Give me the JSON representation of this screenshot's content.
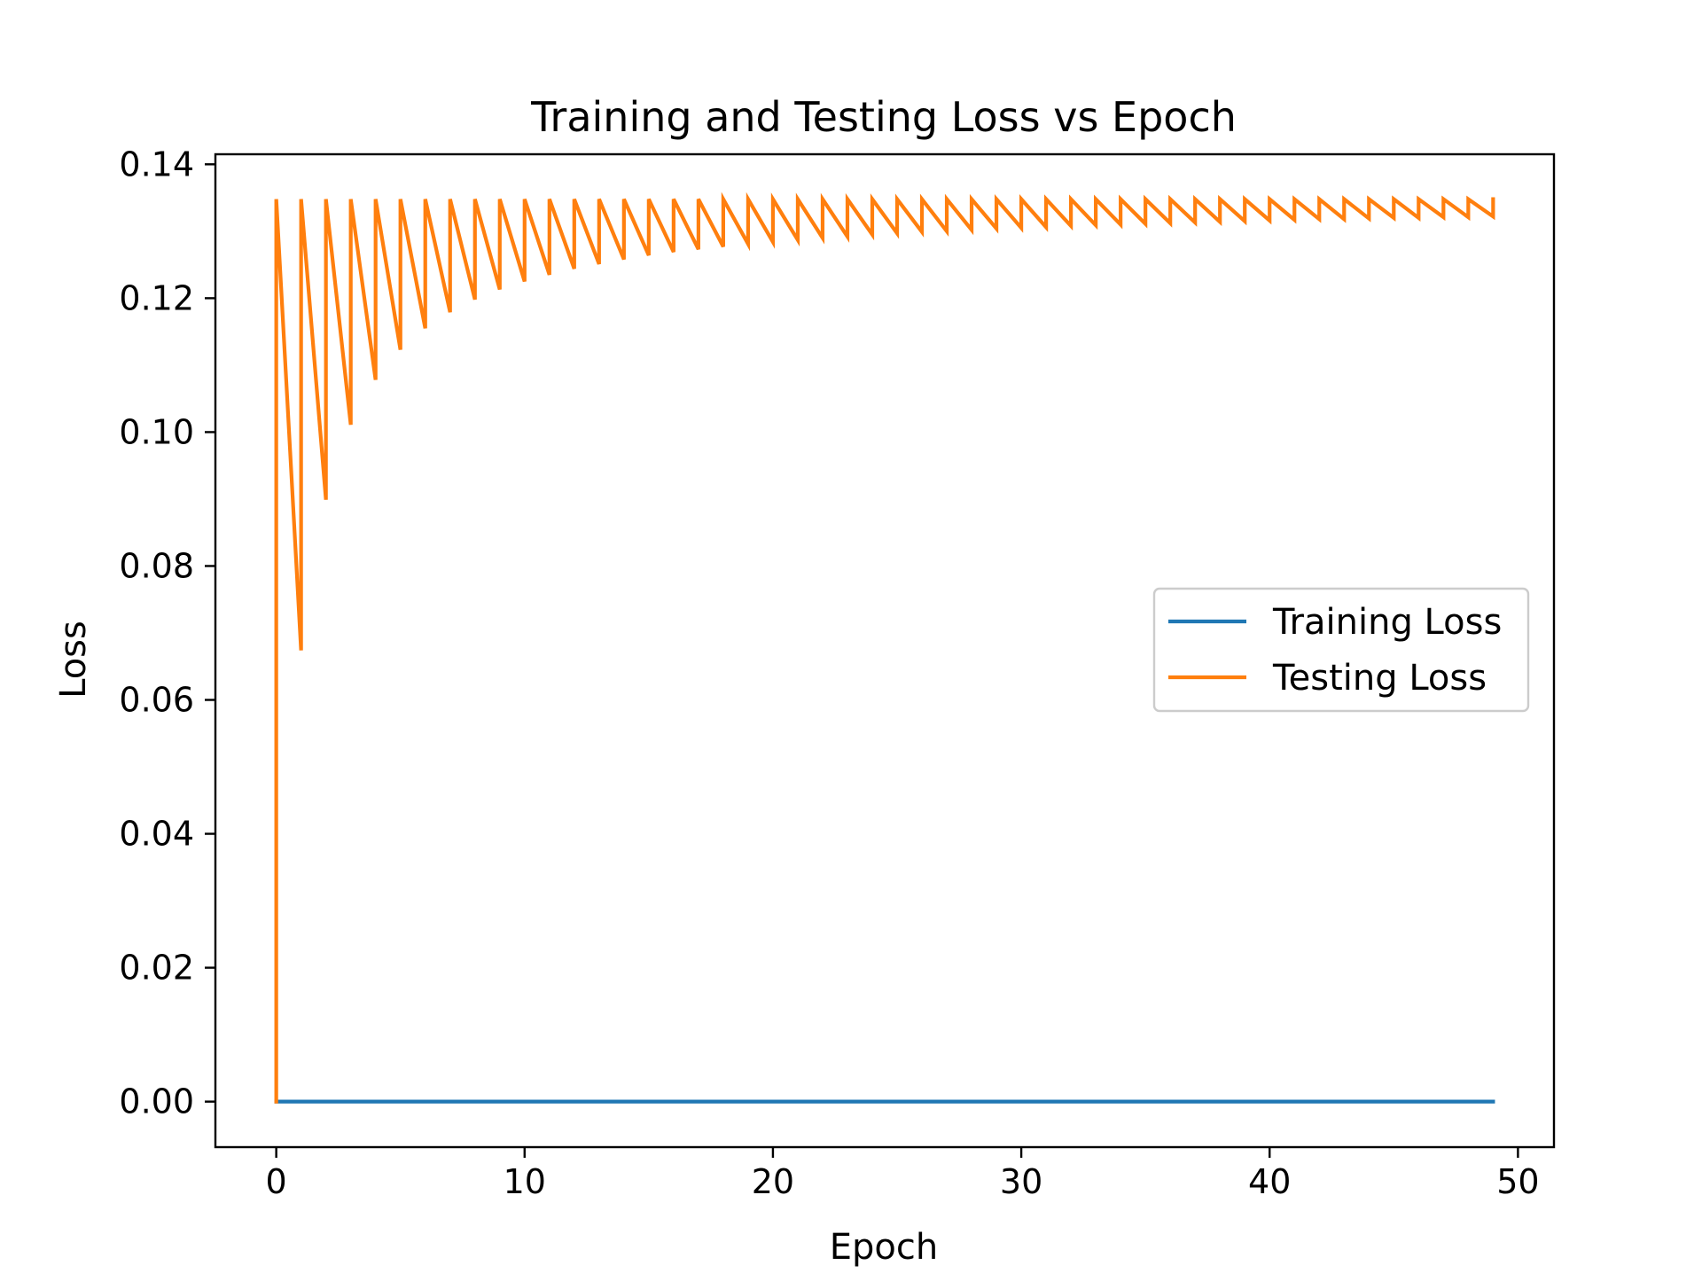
{
  "chart_data": {
    "type": "line",
    "title": "Training and Testing Loss vs Epoch",
    "xlabel": "Epoch",
    "ylabel": "Loss",
    "xlim": [
      -2.45,
      51.45
    ],
    "ylim": [
      -0.0068,
      0.1415
    ],
    "xticks": [
      0,
      10,
      20,
      30,
      40,
      50
    ],
    "xtick_labels": [
      "0",
      "10",
      "20",
      "30",
      "40",
      "50"
    ],
    "yticks": [
      0.0,
      0.02,
      0.04,
      0.06,
      0.08,
      0.1,
      0.12,
      0.14
    ],
    "ytick_labels": [
      "0.00",
      "0.02",
      "0.04",
      "0.06",
      "0.08",
      "0.10",
      "0.12",
      "0.14"
    ],
    "grid": false,
    "legend_position": "center-right",
    "series": [
      {
        "name": "Training Loss",
        "color": "#1f77b4",
        "x": [
          0,
          49
        ],
        "y": [
          0.0,
          0.0
        ]
      },
      {
        "name": "Testing Loss",
        "color": "#ff7f0e",
        "pattern": "sawtooth — each epoch jumps to the peak, then falls to that epoch's trough",
        "x": [
          0,
          49
        ],
        "peak": 0.1348,
        "first_value": 0.0,
        "troughs": [
          0.0674,
          0.0899,
          0.1011,
          0.1078,
          0.1123,
          0.1155,
          0.1179,
          0.1198,
          0.1213,
          0.1225,
          0.1235,
          0.1244,
          0.1251,
          0.1258,
          0.1264,
          0.1269,
          0.1273,
          0.1277,
          0.1281,
          0.1284,
          0.1287,
          0.129,
          0.1292,
          0.1295,
          0.1297,
          0.1299,
          0.13,
          0.1302,
          0.1304,
          0.1305,
          0.1306,
          0.1308,
          0.1309,
          0.131,
          0.1311,
          0.1312,
          0.1313,
          0.1314,
          0.1315,
          0.1316,
          0.1317,
          0.1318,
          0.1318,
          0.1319,
          0.132,
          0.132,
          0.1321,
          0.1321,
          0.1322
        ]
      }
    ]
  }
}
